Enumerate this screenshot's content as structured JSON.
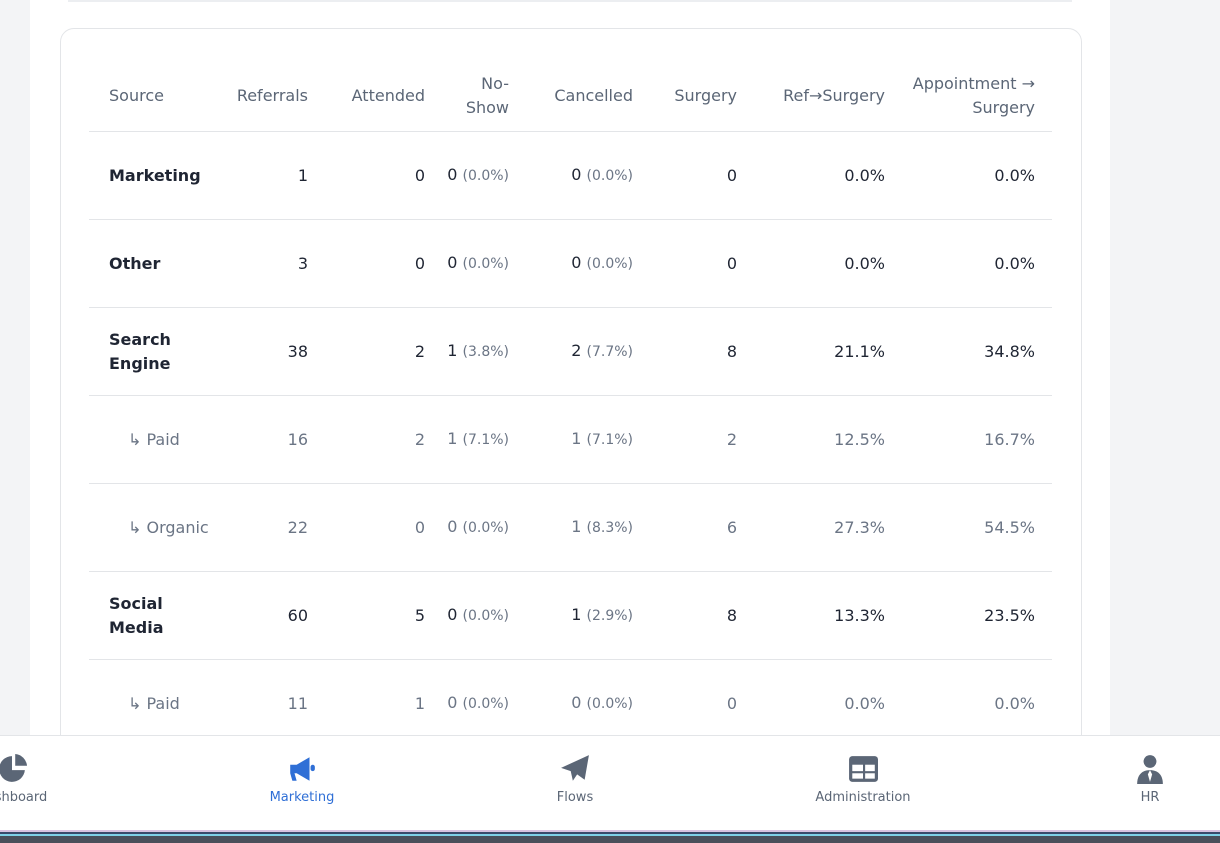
{
  "table": {
    "headers": [
      "Source",
      "Referrals",
      "Attended",
      "No-Show",
      "Cancelled",
      "Surgery",
      "Ref→Surgery",
      "Appointment → Surgery"
    ],
    "rows": [
      {
        "source": "Marketing",
        "referrals": "1",
        "attended": "0",
        "no_show": {
          "value": "0",
          "pct": "(0.0%)"
        },
        "cancelled": {
          "value": "0",
          "pct": "(0.0%)"
        },
        "surgery": "0",
        "ref_surgery": "0.0%",
        "appt_surgery": "0.0%"
      },
      {
        "source": "Other",
        "referrals": "3",
        "attended": "0",
        "no_show": {
          "value": "0",
          "pct": "(0.0%)"
        },
        "cancelled": {
          "value": "0",
          "pct": "(0.0%)"
        },
        "surgery": "0",
        "ref_surgery": "0.0%",
        "appt_surgery": "0.0%"
      },
      {
        "source": "Search Engine",
        "referrals": "38",
        "attended": "2",
        "no_show": {
          "value": "1",
          "pct": "(3.8%)"
        },
        "cancelled": {
          "value": "2",
          "pct": "(7.7%)"
        },
        "surgery": "8",
        "ref_surgery": "21.1%",
        "appt_surgery": "34.8%"
      },
      {
        "source": "↳ Paid",
        "referrals": "16",
        "attended": "2",
        "no_show": {
          "value": "1",
          "pct": "(7.1%)"
        },
        "cancelled": {
          "value": "1",
          "pct": "(7.1%)"
        },
        "surgery": "2",
        "ref_surgery": "12.5%",
        "appt_surgery": "16.7%"
      },
      {
        "source": "↳ Organic",
        "referrals": "22",
        "attended": "0",
        "no_show": {
          "value": "0",
          "pct": "(0.0%)"
        },
        "cancelled": {
          "value": "1",
          "pct": "(8.3%)"
        },
        "surgery": "6",
        "ref_surgery": "27.3%",
        "appt_surgery": "54.5%"
      },
      {
        "source": "Social Media",
        "referrals": "60",
        "attended": "5",
        "no_show": {
          "value": "0",
          "pct": "(0.0%)"
        },
        "cancelled": {
          "value": "1",
          "pct": "(2.9%)"
        },
        "surgery": "8",
        "ref_surgery": "13.3%",
        "appt_surgery": "23.5%"
      },
      {
        "source": "↳ Paid",
        "referrals": "11",
        "attended": "1",
        "no_show": {
          "value": "0",
          "pct": "(0.0%)"
        },
        "cancelled": {
          "value": "0",
          "pct": "(0.0%)"
        },
        "surgery": "0",
        "ref_surgery": "0.0%",
        "appt_surgery": "0.0%"
      }
    ]
  },
  "nav": {
    "items": [
      "Dashboard",
      "Marketing",
      "Flows",
      "Administration",
      "HR"
    ],
    "active": "Marketing"
  }
}
